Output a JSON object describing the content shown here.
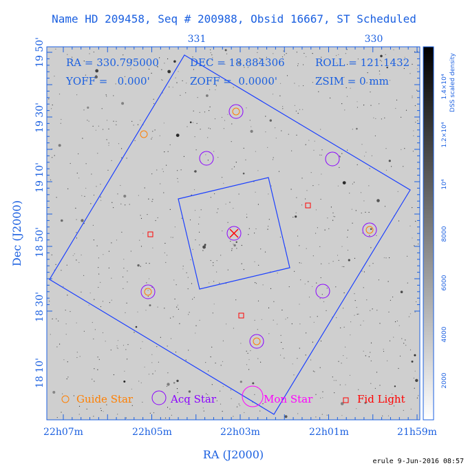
{
  "title": "Name HD 209458, Seq # 200988, Obsid 16667, ST Scheduled",
  "footer": "erule  9-Jun-2016 08:57",
  "axes": {
    "xlabel": "RA (J2000)",
    "ylabel": "Dec (J2000)",
    "ra_ticks_bottom": [
      "22h07m",
      "22h05m",
      "22h03m",
      "22h01m",
      "21h59m"
    ],
    "ra_ticks_top": [
      "331",
      "330"
    ],
    "dec_ticks": [
      "19 50'",
      "19 30'",
      "19 10'",
      "18 50'",
      "18 30'",
      "18 10'"
    ]
  },
  "info": {
    "ra": "RA = 330.795000",
    "dec": "DEC = 18.884306",
    "roll": "ROLL = 121.1432",
    "yoff": "YOFF =   0.000'",
    "zoff": "ZOFF =  0.0000'",
    "zsim": "ZSIM = 0 mm"
  },
  "colorbar": {
    "title": "DSS scaled density",
    "ticks": [
      "2000",
      "4000",
      "6000",
      "8000",
      "10⁴",
      "1.2×10⁴",
      "1.4×10⁴"
    ]
  },
  "legend": {
    "guide": "Guide Star",
    "acq": "Acq Star",
    "mon": "Mon Star",
    "fid": "Fid Light"
  },
  "colors": {
    "axis": "#1a5fe0",
    "guide": "#ff7f00",
    "acq": "#8a00ff",
    "mon": "#ff00ff",
    "fid": "#ff0000",
    "frame": "#1a3fff"
  }
}
